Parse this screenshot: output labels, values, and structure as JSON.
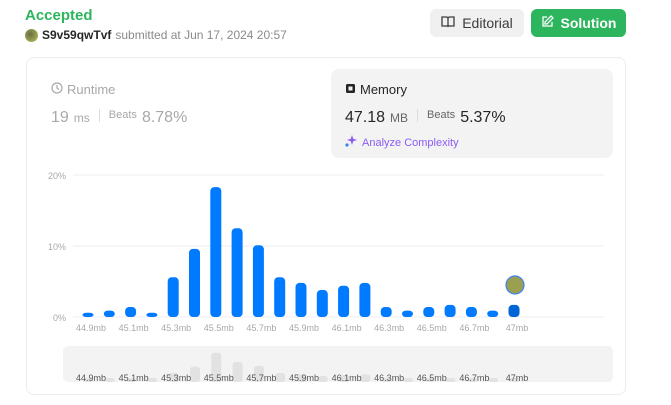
{
  "header": {
    "status": "Accepted",
    "username": "S9v59qwTvf",
    "submitted_text": "submitted at Jun 17, 2024 20:57",
    "editorial_label": "Editorial",
    "solution_label": "Solution"
  },
  "runtime": {
    "label": "Runtime",
    "value": "19",
    "unit": "ms",
    "beats_label": "Beats",
    "beats": "8.78%"
  },
  "memory": {
    "label": "Memory",
    "value": "47.18",
    "unit": "MB",
    "beats_label": "Beats",
    "beats": "5.37%",
    "analyze_label": "Analyze Complexity"
  },
  "colors": {
    "accepted": "#2db55d",
    "bar": "#007aff",
    "bar_user": "#0066d6",
    "analyze": "#8b5cf6"
  },
  "chart_data": {
    "type": "bar",
    "yticks": [
      "0%",
      "10%",
      "20%"
    ],
    "ylim": [
      0,
      20
    ],
    "x_tick_labels": [
      "44.9mb",
      "45.1mb",
      "45.3mb",
      "45.5mb",
      "45.7mb",
      "45.9mb",
      "46.1mb",
      "46.3mb",
      "46.5mb",
      "46.7mb",
      "47mb"
    ],
    "values": [
      0.6,
      0.9,
      1.4,
      0.6,
      5.6,
      9.6,
      18.3,
      12.5,
      10.1,
      5.6,
      4.8,
      3.8,
      4.4,
      4.8,
      1.4,
      0.9,
      1.4,
      1.7,
      1.4,
      0.9,
      1.7
    ],
    "highlight_index": 20,
    "grid": true
  }
}
